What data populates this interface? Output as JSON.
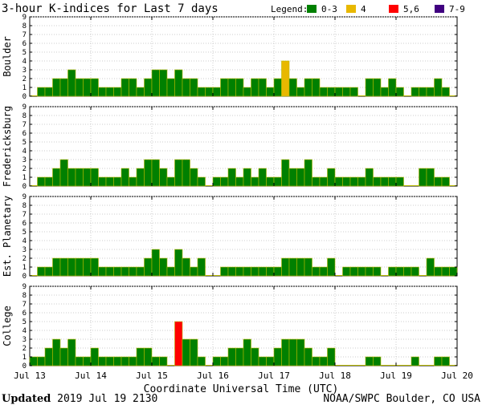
{
  "chart_data": {
    "type": "bar",
    "title": "3-hour K-indices for Last 7 days",
    "legend": {
      "label": "Legend:",
      "entries": [
        {
          "label": "0-3",
          "color": "#008000"
        },
        {
          "label": "4",
          "color": "#e8b800"
        },
        {
          "label": "5,6",
          "color": "#ff0000"
        },
        {
          "label": "7-9",
          "color": "#400080"
        }
      ]
    },
    "ylim": [
      0,
      9
    ],
    "yticks": [
      "0",
      "1",
      "2",
      "3",
      "4",
      "5",
      "6",
      "7",
      "8",
      "9"
    ],
    "xlabel": "Coordinate Universal Time (UTC)",
    "x_tick_labels": [
      "Jul 13",
      "Jul 14",
      "Jul 15",
      "Jul 16",
      "Jul 17",
      "Jul 18",
      "Jul 19",
      "Jul 20"
    ],
    "bars_per_day": 8,
    "panels": [
      {
        "name": "Boulder",
        "values": [
          0,
          1,
          1,
          2,
          2,
          3,
          2,
          2,
          2,
          1,
          1,
          1,
          2,
          2,
          1,
          2,
          3,
          3,
          2,
          3,
          2,
          2,
          1,
          1,
          1,
          2,
          2,
          2,
          1,
          2,
          2,
          1,
          2,
          4,
          2,
          1,
          2,
          2,
          1,
          1,
          1,
          1,
          1,
          0,
          2,
          2,
          1,
          2,
          1,
          0,
          1,
          1,
          1,
          2,
          1,
          0
        ]
      },
      {
        "name": "Fredericksburg",
        "values": [
          0,
          1,
          1,
          2,
          3,
          2,
          2,
          2,
          2,
          1,
          1,
          1,
          2,
          1,
          2,
          3,
          3,
          2,
          1,
          3,
          3,
          2,
          1,
          0,
          1,
          1,
          2,
          1,
          2,
          1,
          2,
          1,
          1,
          3,
          2,
          2,
          3,
          1,
          1,
          2,
          1,
          1,
          1,
          1,
          2,
          1,
          1,
          1,
          1,
          0,
          0,
          2,
          2,
          1,
          1,
          0
        ]
      },
      {
        "name": "Est. Planetary",
        "values": [
          0,
          1,
          1,
          2,
          2,
          2,
          2,
          2,
          2,
          1,
          1,
          1,
          1,
          1,
          1,
          2,
          3,
          2,
          1,
          3,
          2,
          1,
          2,
          0,
          0,
          1,
          1,
          1,
          1,
          1,
          1,
          1,
          1,
          2,
          2,
          2,
          2,
          1,
          1,
          2,
          0,
          1,
          1,
          1,
          1,
          1,
          0,
          1,
          1,
          1,
          1,
          0,
          2,
          1,
          1,
          1
        ]
      },
      {
        "name": "College",
        "values": [
          1,
          1,
          2,
          3,
          2,
          3,
          1,
          1,
          2,
          1,
          1,
          1,
          1,
          1,
          2,
          2,
          1,
          1,
          0,
          5,
          3,
          3,
          1,
          0,
          1,
          1,
          2,
          2,
          3,
          2,
          1,
          1,
          2,
          3,
          3,
          3,
          2,
          1,
          1,
          2,
          0,
          0,
          0,
          0,
          1,
          1,
          0,
          0,
          0,
          0,
          1,
          0,
          0,
          1,
          1,
          0
        ]
      }
    ]
  },
  "footer": {
    "updated_label": "Updated",
    "updated_value": "2019 Jul 19 2130",
    "source": "NOAA/SWPC Boulder, CO USA"
  }
}
